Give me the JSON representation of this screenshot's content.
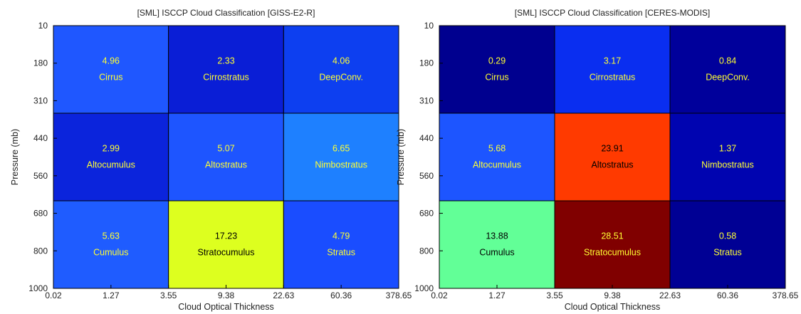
{
  "chart_data": [
    {
      "type": "heatmap",
      "title": "[SML] ISCCP Cloud Classification [GISS-E2-R]",
      "xlabel": "Cloud Optical Thickness",
      "ylabel": "Pressure (mb)",
      "x_ticks": [
        "0.02",
        "1.27",
        "3.55",
        "9.38",
        "22.63",
        "60.36",
        "378.65"
      ],
      "y_ticks": [
        "10",
        "180",
        "310",
        "440",
        "560",
        "680",
        "800",
        "1000"
      ],
      "cells": [
        {
          "row": 0,
          "col": 0,
          "value": "4.96",
          "name": "Cirrus",
          "fill": "#1f57ff",
          "text_color": "#ffff33"
        },
        {
          "row": 0,
          "col": 1,
          "value": "2.33",
          "name": "Cirrostratus",
          "fill": "#0a1ed6",
          "text_color": "#ffff33"
        },
        {
          "row": 0,
          "col": 2,
          "value": "4.06",
          "name": "DeepConv.",
          "fill": "#0d3ff0",
          "text_color": "#ffff33"
        },
        {
          "row": 1,
          "col": 0,
          "value": "2.99",
          "name": "Altocumulus",
          "fill": "#0b24dc",
          "text_color": "#ffff33"
        },
        {
          "row": 1,
          "col": 1,
          "value": "5.07",
          "name": "Altostratus",
          "fill": "#1e55ff",
          "text_color": "#ffff33"
        },
        {
          "row": 1,
          "col": 2,
          "value": "6.65",
          "name": "Nimbostratus",
          "fill": "#1e80ff",
          "text_color": "#ffff33"
        },
        {
          "row": 2,
          "col": 0,
          "value": "5.63",
          "name": "Cumulus",
          "fill": "#1f5cff",
          "text_color": "#ffff33"
        },
        {
          "row": 2,
          "col": 1,
          "value": "17.23",
          "name": "Stratocumulus",
          "fill": "#ddff1f",
          "text_color": "#000000"
        },
        {
          "row": 2,
          "col": 2,
          "value": "4.79",
          "name": "Stratus",
          "fill": "#1a4dff",
          "text_color": "#ffff33"
        }
      ]
    },
    {
      "type": "heatmap",
      "title": "[SML] ISCCP Cloud Classification [CERES-MODIS]",
      "xlabel": "Cloud Optical Thickness",
      "ylabel": "Pressure (mb)",
      "x_ticks": [
        "0.02",
        "1.27",
        "3.55",
        "9.38",
        "22.63",
        "60.36",
        "378.65"
      ],
      "y_ticks": [
        "10",
        "180",
        "310",
        "440",
        "560",
        "680",
        "800",
        "1000"
      ],
      "cells": [
        {
          "row": 0,
          "col": 0,
          "value": "0.29",
          "name": "Cirrus",
          "fill": "#00008f",
          "text_color": "#ffff33"
        },
        {
          "row": 0,
          "col": 1,
          "value": "3.17",
          "name": "Cirrostratus",
          "fill": "#0a2ef0",
          "text_color": "#ffff33"
        },
        {
          "row": 0,
          "col": 2,
          "value": "0.84",
          "name": "DeepConv.",
          "fill": "#00009b",
          "text_color": "#ffff33"
        },
        {
          "row": 1,
          "col": 0,
          "value": "5.68",
          "name": "Altocumulus",
          "fill": "#1d55ff",
          "text_color": "#ffff33"
        },
        {
          "row": 1,
          "col": 1,
          "value": "23.91",
          "name": "Altostratus",
          "fill": "#ff3a00",
          "text_color": "#000000"
        },
        {
          "row": 1,
          "col": 2,
          "value": "1.37",
          "name": "Nimbostratus",
          "fill": "#0004b0",
          "text_color": "#ffff33"
        },
        {
          "row": 2,
          "col": 0,
          "value": "13.88",
          "name": "Cumulus",
          "fill": "#62ff97",
          "text_color": "#000000"
        },
        {
          "row": 2,
          "col": 1,
          "value": "28.51",
          "name": "Stratocumulus",
          "fill": "#800000",
          "text_color": "#ffff33"
        },
        {
          "row": 2,
          "col": 2,
          "value": "0.58",
          "name": "Stratus",
          "fill": "#000094",
          "text_color": "#ffff33"
        }
      ]
    }
  ]
}
